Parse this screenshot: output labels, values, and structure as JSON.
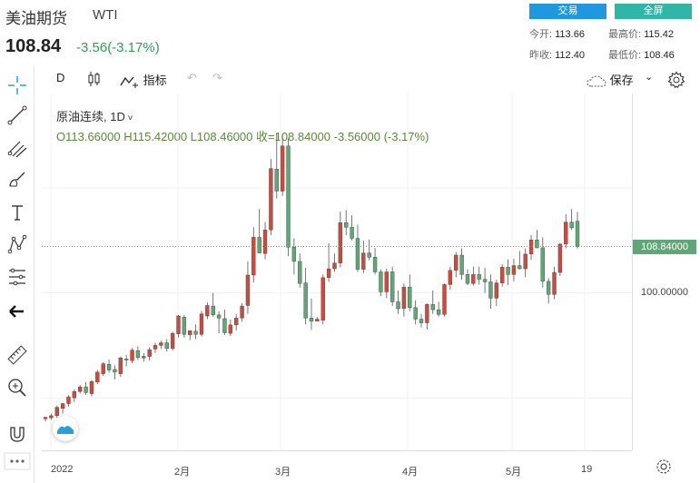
{
  "header": {
    "name": "美油期货",
    "code": "WTI",
    "price": "108.84",
    "change": "-3.56(-3.17%)",
    "trade_label": "交易",
    "fullscreen_label": "全屏",
    "open_label": "今开:",
    "open": "113.66",
    "high_label": "最高价:",
    "high": "115.42",
    "prev_label": "昨收:",
    "prev": "112.40",
    "low_label": "最低价:",
    "low": "108.46"
  },
  "toolbar": {
    "interval": "D",
    "indicators_label": "指标",
    "save_label": "保存"
  },
  "legend": {
    "title": "原油连续, 1D",
    "ohlc": "O113.66000  H115.42000  L108.46000  收=108.84000  -3.56000  (-3.17%)"
  },
  "axis": {
    "last_price_label": "108.84000",
    "tick_100": "100.00000"
  },
  "xaxis": {
    "labels": [
      "2022",
      "2月",
      "3月",
      "4月",
      "5月",
      "19"
    ]
  },
  "colors": {
    "up": "#d0493b",
    "down": "#5fa776",
    "accent": "#1f98e0",
    "fullscreen": "#2fb6a7"
  },
  "chart_data": {
    "type": "candlestick",
    "symbol": "原油连续",
    "interval": "1D",
    "last": 108.84,
    "candles": [
      [
        76.0,
        76.4,
        75.5,
        76.3
      ],
      [
        76.2,
        77.0,
        75.8,
        76.6
      ],
      [
        76.6,
        78.5,
        76.2,
        78.2
      ],
      [
        78.0,
        79.0,
        77.0,
        78.9
      ],
      [
        78.9,
        80.5,
        78.3,
        80.2
      ],
      [
        80.0,
        81.6,
        79.2,
        81.2
      ],
      [
        81.2,
        82.4,
        80.8,
        82.1
      ],
      [
        82.1,
        83.0,
        80.6,
        81.0
      ],
      [
        80.8,
        83.4,
        80.3,
        83.1
      ],
      [
        83.0,
        85.3,
        82.6,
        84.9
      ],
      [
        84.6,
        86.8,
        84.2,
        86.5
      ],
      [
        86.4,
        87.3,
        84.8,
        85.3
      ],
      [
        85.4,
        86.2,
        83.5,
        84.9
      ],
      [
        84.6,
        87.9,
        84.0,
        87.6
      ],
      [
        87.4,
        88.2,
        86.0,
        87.2
      ],
      [
        87.1,
        89.5,
        86.6,
        89.1
      ],
      [
        89.0,
        89.8,
        87.2,
        87.7
      ],
      [
        87.6,
        88.5,
        86.9,
        87.9
      ],
      [
        87.9,
        89.6,
        87.1,
        89.2
      ],
      [
        89.3,
        90.5,
        88.6,
        90.0
      ],
      [
        90.0,
        90.9,
        89.3,
        90.5
      ],
      [
        90.5,
        91.2,
        88.8,
        89.4
      ],
      [
        89.4,
        92.6,
        89.0,
        92.3
      ],
      [
        92.2,
        95.8,
        91.5,
        95.6
      ],
      [
        95.4,
        95.8,
        91.5,
        92.1
      ],
      [
        92.0,
        92.8,
        91.0,
        92.8
      ],
      [
        92.7,
        94.0,
        91.2,
        92.1
      ],
      [
        92.1,
        96.6,
        91.7,
        96.0
      ],
      [
        95.6,
        98.2,
        95.0,
        97.6
      ],
      [
        97.5,
        100.0,
        95.5,
        95.8
      ],
      [
        95.8,
        96.5,
        92.3,
        95.2
      ],
      [
        95.1,
        96.8,
        92.0,
        92.4
      ],
      [
        92.3,
        94.9,
        91.8,
        93.9
      ],
      [
        93.9,
        96.0,
        92.8,
        95.2
      ],
      [
        95.2,
        98.0,
        94.5,
        97.5
      ],
      [
        97.6,
        106.0,
        96.0,
        103.4
      ],
      [
        103.4,
        112.5,
        102.0,
        110.6
      ],
      [
        110.6,
        116.0,
        108.0,
        107.6
      ],
      [
        107.5,
        113.5,
        106.4,
        112.0
      ],
      [
        112.0,
        125.5,
        111.0,
        123.7
      ],
      [
        123.6,
        130.5,
        118.0,
        119.4
      ],
      [
        119.4,
        130.1,
        118.5,
        128.0
      ],
      [
        128.0,
        129.4,
        107.0,
        108.7
      ],
      [
        108.7,
        110.4,
        103.5,
        106.0
      ],
      [
        106.0,
        107.5,
        101.0,
        101.8
      ],
      [
        101.9,
        104.8,
        94.0,
        95.2
      ],
      [
        95.2,
        98.9,
        93.0,
        94.6
      ],
      [
        94.6,
        95.4,
        95.0,
        95.0
      ],
      [
        94.8,
        103.5,
        94.0,
        102.9
      ],
      [
        102.9,
        109.5,
        102.1,
        104.6
      ],
      [
        104.6,
        107.5,
        104.0,
        105.7
      ],
      [
        105.7,
        115.5,
        104.9,
        113.4
      ],
      [
        113.4,
        115.8,
        111.0,
        112.5
      ],
      [
        112.5,
        114.8,
        110.0,
        110.4
      ],
      [
        110.4,
        113.0,
        104.0,
        104.5
      ],
      [
        104.5,
        110.0,
        103.8,
        107.6
      ],
      [
        107.6,
        110.2,
        106.2,
        106.8
      ],
      [
        106.8,
        108.6,
        103.5,
        104.0
      ],
      [
        104.0,
        104.5,
        99.4,
        100.2
      ],
      [
        100.2,
        104.6,
        99.0,
        104.0
      ],
      [
        104.0,
        105.0,
        97.5,
        98.3
      ],
      [
        98.3,
        100.5,
        96.0,
        97.0
      ],
      [
        97.0,
        101.8,
        95.5,
        101.1
      ],
      [
        101.1,
        103.5,
        96.5,
        97.2
      ],
      [
        97.2,
        98.6,
        94.0,
        95.0
      ],
      [
        95.0,
        96.0,
        93.4,
        94.3
      ],
      [
        94.3,
        98.0,
        93.0,
        97.8
      ],
      [
        97.8,
        100.5,
        96.0,
        96.8
      ],
      [
        96.8,
        98.3,
        95.5,
        95.9
      ],
      [
        95.9,
        101.8,
        95.5,
        101.6
      ],
      [
        101.6,
        105.0,
        100.6,
        104.3
      ],
      [
        104.3,
        107.8,
        103.0,
        107.2
      ],
      [
        107.2,
        108.5,
        102.5,
        103.5
      ],
      [
        103.5,
        104.5,
        101.5,
        101.8
      ],
      [
        101.8,
        105.0,
        101.4,
        103.5
      ],
      [
        103.5,
        105.0,
        101.6,
        102.6
      ],
      [
        102.6,
        104.8,
        100.0,
        102.1
      ],
      [
        102.1,
        103.5,
        97.0,
        99.0
      ],
      [
        99.0,
        102.5,
        97.5,
        101.9
      ],
      [
        101.9,
        105.5,
        101.2,
        104.9
      ],
      [
        104.9,
        106.4,
        101.5,
        103.5
      ],
      [
        103.5,
        106.5,
        102.2,
        105.2
      ],
      [
        105.2,
        108.0,
        104.5,
        104.6
      ],
      [
        104.6,
        108.5,
        103.0,
        107.4
      ],
      [
        107.4,
        111.0,
        106.3,
        110.1
      ],
      [
        110.1,
        112.0,
        108.5,
        108.6
      ],
      [
        108.6,
        110.6,
        101.0,
        102.2
      ],
      [
        102.2,
        102.8,
        98.0,
        99.7
      ],
      [
        99.7,
        105.0,
        98.8,
        103.9
      ],
      [
        103.9,
        109.5,
        103.2,
        109.3
      ],
      [
        109.3,
        115.0,
        108.5,
        113.5
      ],
      [
        113.5,
        116.0,
        112.0,
        112.4
      ],
      [
        113.66,
        115.42,
        108.46,
        108.84
      ]
    ],
    "ylim": [
      70,
      138
    ]
  }
}
